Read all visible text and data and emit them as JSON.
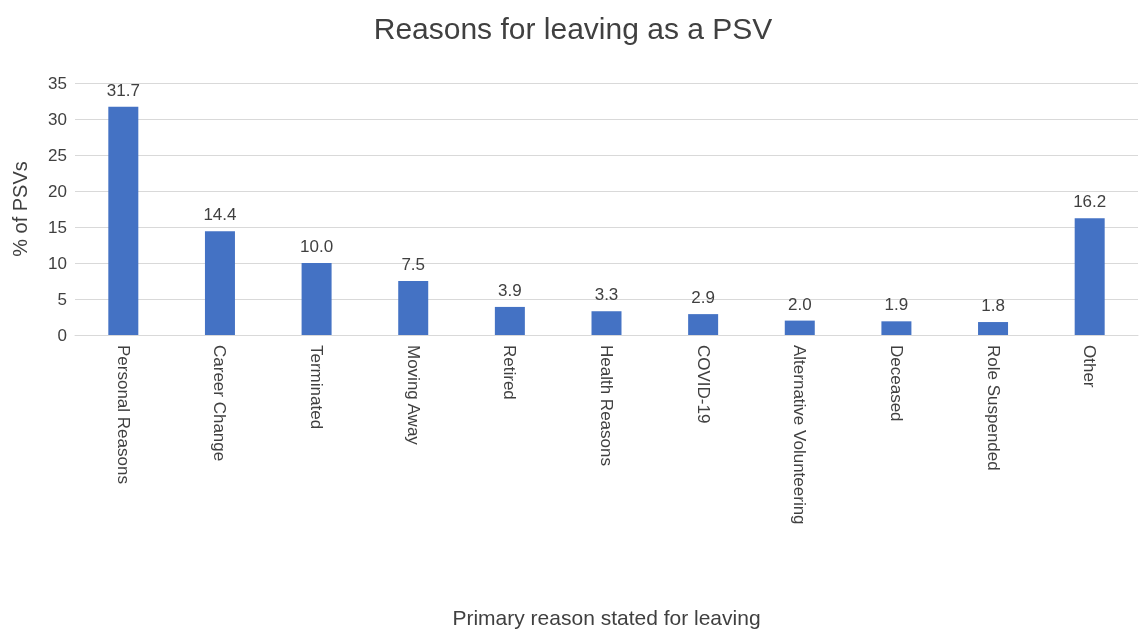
{
  "chart_data": {
    "type": "bar",
    "title": "Reasons for leaving as a PSV",
    "xlabel": "Primary reason stated for leaving",
    "ylabel": "% of PSVs",
    "categories": [
      "Personal Reasons",
      "Career Change",
      "Terminated",
      "Moving Away",
      "Retired",
      "Health Reasons",
      "COVID-19",
      "Alternative Volunteering",
      "Deceased",
      "Role Suspended",
      "Other"
    ],
    "values": [
      31.7,
      14.4,
      10.0,
      7.5,
      3.9,
      3.3,
      2.9,
      2.0,
      1.9,
      1.8,
      16.2
    ],
    "value_labels": [
      "31.7",
      "14.4",
      "10.0",
      "7.5",
      "3.9",
      "3.3",
      "2.9",
      "2.0",
      "1.9",
      "1.8",
      "16.2"
    ],
    "color": "#4472c4",
    "ylim": [
      0,
      35
    ],
    "yticks": [
      0,
      5,
      10,
      15,
      20,
      25,
      30,
      35
    ],
    "grid": "y"
  }
}
